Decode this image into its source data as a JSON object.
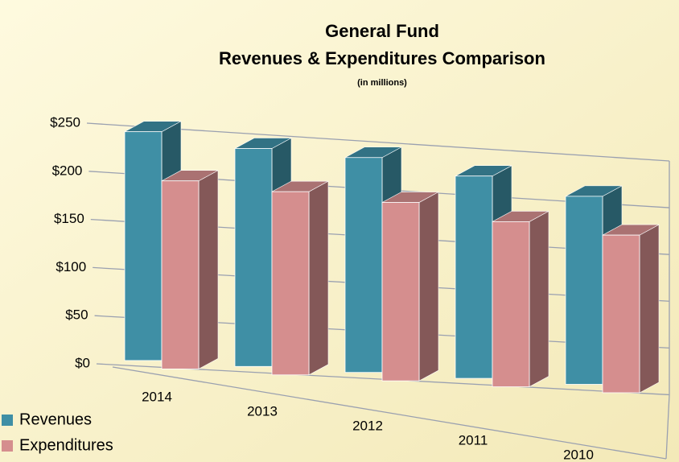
{
  "chart_data": {
    "type": "bar3d",
    "title": "General Fund",
    "subtitle": "Revenues & Expenditures Comparison",
    "note": "(in millions)",
    "categories": [
      "2014",
      "2013",
      "2012",
      "2011",
      "2010"
    ],
    "series": [
      {
        "name": "Revenues",
        "color": "#3f8fa5",
        "values": [
          238,
          228,
          226,
          214,
          200
        ]
      },
      {
        "name": "Expenditures",
        "color": "#d58e8e",
        "values": [
          196,
          192,
          188,
          175,
          168
        ]
      }
    ],
    "ylim": [
      0,
      250
    ],
    "yticks": [
      {
        "value": 0,
        "label": "$0"
      },
      {
        "value": 50,
        "label": "$50"
      },
      {
        "value": 100,
        "label": "$100"
      },
      {
        "value": 150,
        "label": "$150"
      },
      {
        "value": 200,
        "label": "$200"
      },
      {
        "value": 250,
        "label": "$250"
      }
    ],
    "grid": true,
    "legend": "bottom-left"
  }
}
